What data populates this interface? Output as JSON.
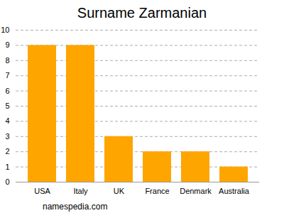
{
  "chart_data": {
    "type": "bar",
    "title": "Surname Zarmanian",
    "categories": [
      "USA",
      "Italy",
      "UK",
      "France",
      "Denmark",
      "Australia"
    ],
    "values": [
      9,
      9,
      3,
      2,
      2,
      1
    ],
    "color": "#ffa500",
    "ylim": [
      0,
      10
    ],
    "yticks": [
      0,
      1,
      2,
      3,
      4,
      5,
      6,
      7,
      8,
      9,
      10
    ],
    "grid": true,
    "caption": "namespedia.com"
  }
}
